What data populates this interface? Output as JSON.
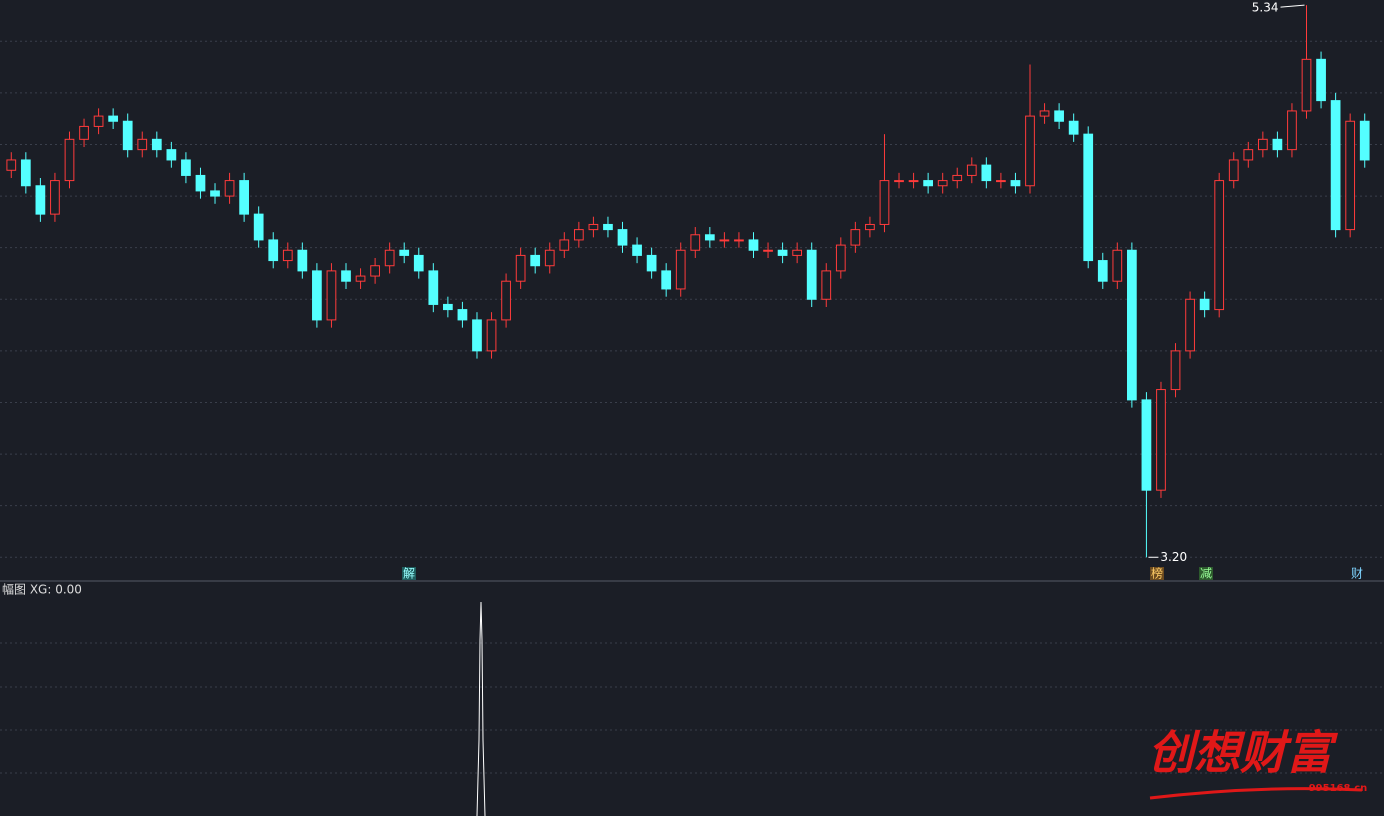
{
  "chart_data": {
    "type": "candlestick",
    "open": [
      4.7,
      4.74,
      4.64,
      4.53,
      4.66,
      4.82,
      4.87,
      4.91,
      4.89,
      4.78,
      4.82,
      4.78,
      4.74,
      4.68,
      4.62,
      4.6,
      4.66,
      4.53,
      4.43,
      4.35,
      4.39,
      4.31,
      4.12,
      4.31,
      4.27,
      4.29,
      4.33,
      4.39,
      4.37,
      4.31,
      4.18,
      4.16,
      4.12,
      4.0,
      4.12,
      4.27,
      4.37,
      4.33,
      4.39,
      4.43,
      4.47,
      4.49,
      4.47,
      4.41,
      4.37,
      4.31,
      4.24,
      4.39,
      4.45,
      4.43,
      4.43,
      4.43,
      4.39,
      4.39,
      4.37,
      4.39,
      4.2,
      4.31,
      4.41,
      4.47,
      4.49,
      4.66,
      4.66,
      4.66,
      4.64,
      4.66,
      4.68,
      4.72,
      4.66,
      4.66,
      4.64,
      4.91,
      4.93,
      4.89,
      4.84,
      4.35,
      4.27,
      4.39,
      3.81,
      3.46,
      3.85,
      4.0,
      4.2,
      4.16,
      4.66,
      4.74,
      4.78,
      4.82,
      4.78,
      4.93,
      5.13,
      4.97,
      4.47,
      4.89
    ],
    "high": [
      4.77,
      4.77,
      4.67,
      4.69,
      4.85,
      4.9,
      4.94,
      4.94,
      4.92,
      4.85,
      4.85,
      4.81,
      4.77,
      4.71,
      4.65,
      4.69,
      4.69,
      4.56,
      4.46,
      4.42,
      4.42,
      4.34,
      4.34,
      4.34,
      4.32,
      4.36,
      4.42,
      4.42,
      4.4,
      4.34,
      4.21,
      4.19,
      4.15,
      4.15,
      4.3,
      4.4,
      4.4,
      4.42,
      4.46,
      4.5,
      4.52,
      4.52,
      4.5,
      4.44,
      4.4,
      4.34,
      4.42,
      4.48,
      4.48,
      4.46,
      4.46,
      4.46,
      4.42,
      4.42,
      4.42,
      4.42,
      4.34,
      4.44,
      4.5,
      4.52,
      4.84,
      4.69,
      4.69,
      4.69,
      4.69,
      4.71,
      4.75,
      4.75,
      4.69,
      4.69,
      5.11,
      4.96,
      4.96,
      4.92,
      4.87,
      4.38,
      4.42,
      4.42,
      3.84,
      3.88,
      4.03,
      4.23,
      4.23,
      4.69,
      4.77,
      4.81,
      4.85,
      4.85,
      4.96,
      5.34,
      5.16,
      5.0,
      4.92,
      4.92
    ],
    "low": [
      4.67,
      4.61,
      4.5,
      4.5,
      4.63,
      4.79,
      4.84,
      4.86,
      4.75,
      4.75,
      4.75,
      4.71,
      4.65,
      4.59,
      4.57,
      4.57,
      4.5,
      4.4,
      4.32,
      4.32,
      4.28,
      4.09,
      4.09,
      4.24,
      4.24,
      4.26,
      4.3,
      4.34,
      4.28,
      4.15,
      4.13,
      4.09,
      3.97,
      3.97,
      4.09,
      4.24,
      4.3,
      4.3,
      4.36,
      4.4,
      4.44,
      4.44,
      4.38,
      4.34,
      4.28,
      4.21,
      4.21,
      4.36,
      4.4,
      4.4,
      4.4,
      4.36,
      4.36,
      4.34,
      4.34,
      4.17,
      4.17,
      4.28,
      4.38,
      4.44,
      4.46,
      4.63,
      4.63,
      4.61,
      4.61,
      4.63,
      4.65,
      4.63,
      4.63,
      4.61,
      4.61,
      4.88,
      4.86,
      4.81,
      4.32,
      4.24,
      4.24,
      3.78,
      3.2,
      3.43,
      3.82,
      3.97,
      4.13,
      4.13,
      4.63,
      4.71,
      4.75,
      4.75,
      4.75,
      4.9,
      4.94,
      4.44,
      4.44,
      4.71
    ],
    "close": [
      4.74,
      4.64,
      4.53,
      4.66,
      4.82,
      4.87,
      4.91,
      4.89,
      4.78,
      4.82,
      4.78,
      4.74,
      4.68,
      4.62,
      4.6,
      4.66,
      4.53,
      4.43,
      4.35,
      4.39,
      4.31,
      4.12,
      4.31,
      4.27,
      4.29,
      4.33,
      4.39,
      4.37,
      4.31,
      4.18,
      4.16,
      4.12,
      4.0,
      4.12,
      4.27,
      4.37,
      4.33,
      4.39,
      4.43,
      4.47,
      4.49,
      4.47,
      4.41,
      4.37,
      4.31,
      4.24,
      4.39,
      4.45,
      4.43,
      4.43,
      4.43,
      4.39,
      4.39,
      4.37,
      4.39,
      4.2,
      4.31,
      4.41,
      4.47,
      4.49,
      4.66,
      4.66,
      4.66,
      4.64,
      4.66,
      4.68,
      4.72,
      4.66,
      4.66,
      4.64,
      4.91,
      4.93,
      4.89,
      4.84,
      4.35,
      4.27,
      4.39,
      3.81,
      3.46,
      3.85,
      4.0,
      4.2,
      4.16,
      4.66,
      4.74,
      4.78,
      4.82,
      4.78,
      4.93,
      5.13,
      4.97,
      4.47,
      4.89,
      4.74
    ],
    "up_color": "#ff3b3b",
    "down_color": "#54ffff",
    "ylim": [
      3.17,
      5.36
    ],
    "yticks": [
      3.2,
      3.4,
      3.6,
      3.8,
      4.0,
      4.2,
      4.4,
      4.6,
      4.8,
      5.0,
      5.2
    ],
    "grid": true,
    "extreme_labels": {
      "high": "5.34",
      "low": "3.20"
    },
    "events": [
      {
        "label": "解"
      },
      {
        "label": "榜"
      },
      {
        "label": "减"
      },
      {
        "label": "财"
      }
    ],
    "indicator": {
      "title": "幅图  XG: 0.00"
    },
    "watermark": {
      "title": "创想财富",
      "site": "995168.cn"
    }
  }
}
